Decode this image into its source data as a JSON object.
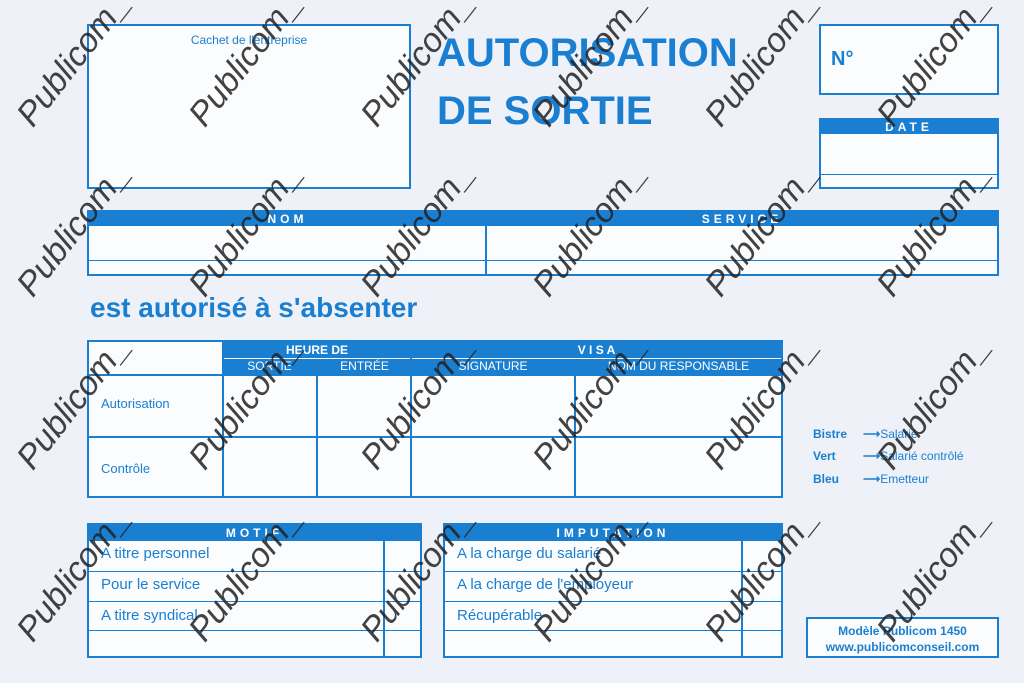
{
  "title": {
    "line1": "AUTORISATION",
    "line2": "DE SORTIE"
  },
  "stamp_label": "Cachet de l'entreprise",
  "number_label": "N°",
  "date_label": "DATE",
  "name_table": {
    "nom": "NOM",
    "service": "SERVICE"
  },
  "absence_text": "est autorisé à s'absenter",
  "main_table": {
    "heure_de": "HEURE DE",
    "visa": "V I S A",
    "sortie": "SORTIE",
    "entree": "ENTRÉE",
    "signature": "SIGNATURE",
    "nom_responsable": "NOM DU RESPONSABLE",
    "rows": [
      "Autorisation",
      "Contrôle"
    ]
  },
  "legend": [
    {
      "color": "Bistre",
      "target": "Salarié"
    },
    {
      "color": "Vert",
      "target": "Salarié contrôlé"
    },
    {
      "color": "Bleu",
      "target": "Emetteur"
    }
  ],
  "motif": {
    "header": "MOTIF",
    "items": [
      "A titre personnel",
      "Pour le service",
      "A titre syndical"
    ]
  },
  "imputation": {
    "header": "IMPUTATION",
    "items": [
      "A la charge du salarié",
      "A la charge de l'employeur",
      "Récupérable"
    ]
  },
  "model": {
    "line1": "Modèle Publicom 1450",
    "line2": "www.publicomconseil.com"
  },
  "watermark": "Publicom_",
  "colors": {
    "accent": "#1a7fd1",
    "background": "#eef1f7"
  }
}
